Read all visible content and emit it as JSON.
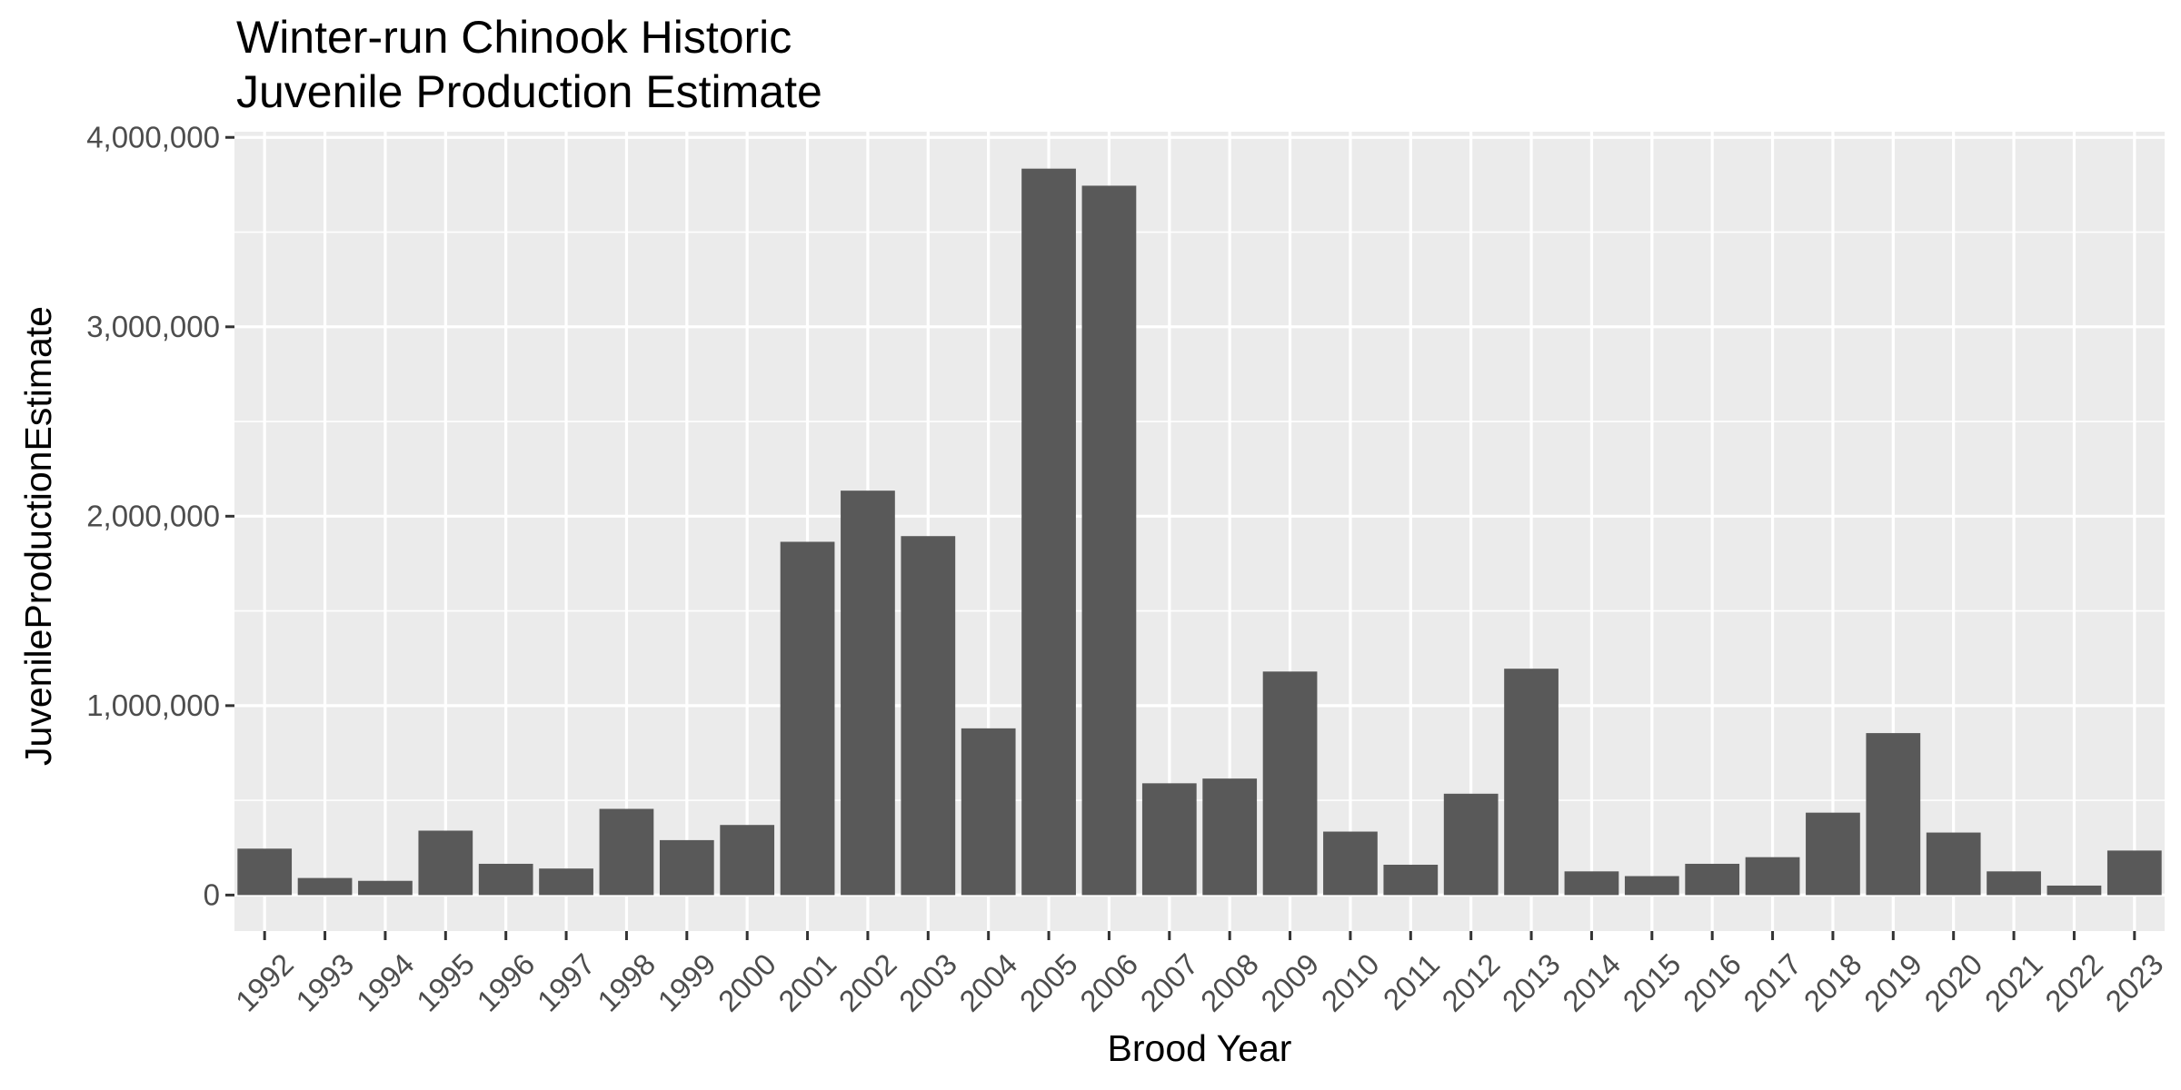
{
  "chart_data": {
    "type": "bar",
    "title_lines": [
      "Winter-run Chinook Historic",
      "Juvenile Production Estimate"
    ],
    "xlabel": "Brood Year",
    "ylabel": "JuvenileProductionEstimate",
    "categories": [
      "1992",
      "1993",
      "1994",
      "1995",
      "1996",
      "1997",
      "1998",
      "1999",
      "2000",
      "2001",
      "2002",
      "2003",
      "2004",
      "2005",
      "2006",
      "2007",
      "2008",
      "2009",
      "2010",
      "2011",
      "2012",
      "2013",
      "2014",
      "2015",
      "2016",
      "2017",
      "2018",
      "2019",
      "2020",
      "2021",
      "2022",
      "2023"
    ],
    "values": [
      245000,
      90000,
      75000,
      340000,
      165000,
      140000,
      455000,
      290000,
      370000,
      1865000,
      2135000,
      1895000,
      880000,
      3835000,
      3745000,
      590000,
      615000,
      1180000,
      335000,
      160000,
      535000,
      1195000,
      125000,
      100000,
      165000,
      200000,
      435000,
      855000,
      330000,
      125000,
      50000,
      235000
    ],
    "ylim": [
      -190000,
      4030000
    ],
    "yticks": [
      {
        "value": 0,
        "label": "0"
      },
      {
        "value": 1000000,
        "label": "1,000,000"
      },
      {
        "value": 2000000,
        "label": "2,000,000"
      },
      {
        "value": 3000000,
        "label": "3,000,000"
      },
      {
        "value": 4000000,
        "label": "4,000,000"
      }
    ],
    "grid": true,
    "colors": {
      "bar": "#595959",
      "panel": "#ebebeb",
      "grid": "#ffffff",
      "tick_text": "#4d4d4d",
      "tick_mark": "#333333"
    }
  }
}
